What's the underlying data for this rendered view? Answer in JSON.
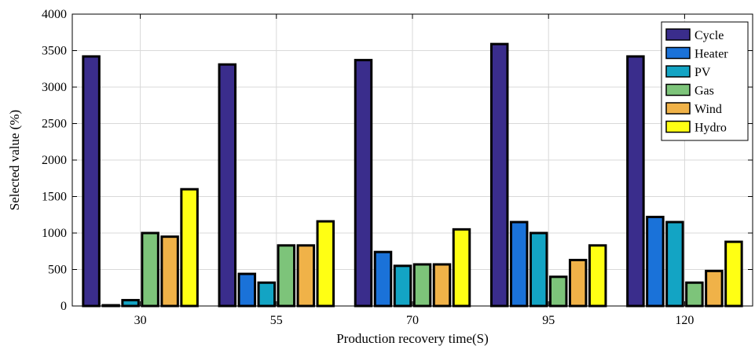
{
  "chart_data": {
    "type": "bar",
    "title": "",
    "xlabel": "Production recovery time(S)",
    "ylabel": "Selected value (%)",
    "categories": [
      "30",
      "55",
      "70",
      "95",
      "120"
    ],
    "ylim": [
      0,
      4000
    ],
    "yticks": [
      0,
      500,
      1000,
      1500,
      2000,
      2500,
      3000,
      3500,
      4000
    ],
    "grid": true,
    "legend_position": "top-right",
    "series": [
      {
        "name": "Cycle",
        "color": "#3a2d8c",
        "values": [
          3420,
          3310,
          3370,
          3590,
          3420
        ]
      },
      {
        "name": "Heater",
        "color": "#1a72d9",
        "values": [
          10,
          440,
          740,
          1150,
          1220
        ]
      },
      {
        "name": "PV",
        "color": "#13a4c4",
        "values": [
          80,
          320,
          550,
          1000,
          1150
        ]
      },
      {
        "name": "Gas",
        "color": "#7dc47a",
        "values": [
          1000,
          830,
          570,
          400,
          320
        ]
      },
      {
        "name": "Wind",
        "color": "#f0b248",
        "values": [
          950,
          830,
          570,
          630,
          480
        ]
      },
      {
        "name": "Hydro",
        "color": "#ffff14",
        "values": [
          1600,
          1160,
          1050,
          830,
          880
        ]
      }
    ]
  }
}
